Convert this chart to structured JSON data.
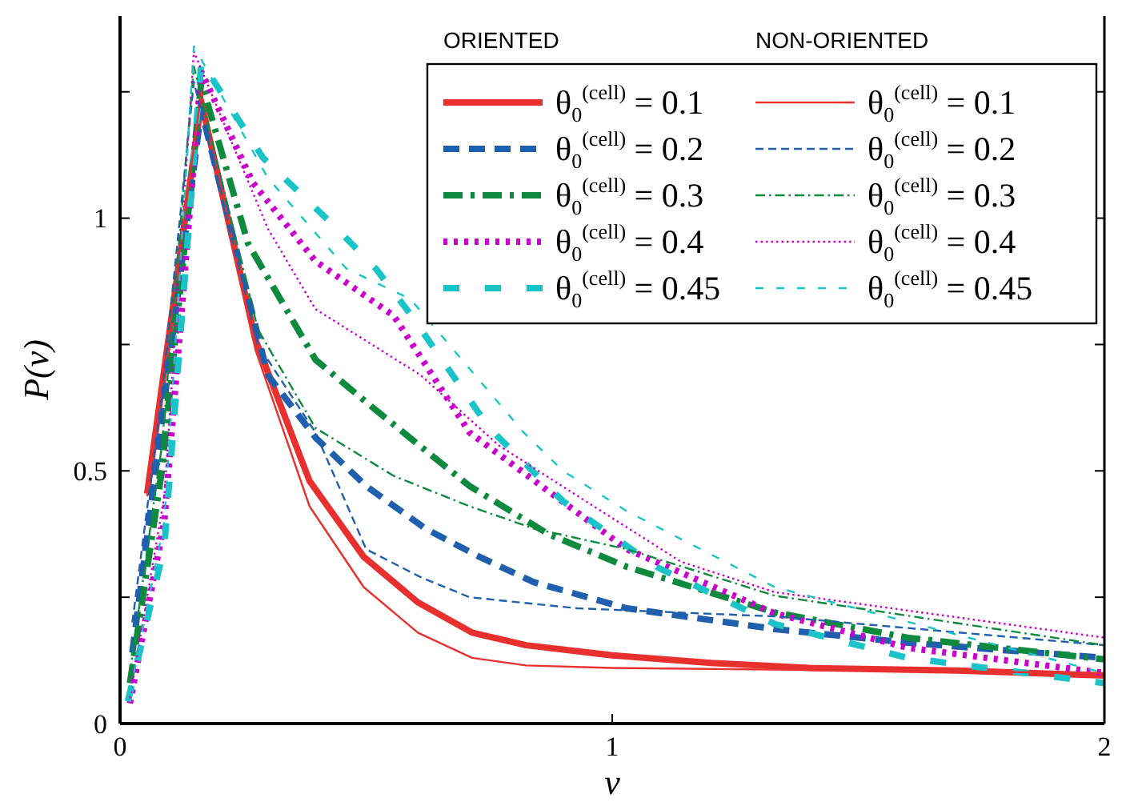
{
  "chart_data": {
    "type": "line",
    "xlabel": "v",
    "ylabel": "P(v)",
    "xlim": [
      0,
      2
    ],
    "ylim": [
      0,
      1.4
    ],
    "xticks": [
      0,
      1,
      2
    ],
    "yticks": [
      0,
      {
        "value": 0.25,
        "label": null
      },
      0.5,
      {
        "value": 0.75,
        "label": null
      },
      1,
      {
        "value": 1.25,
        "label": null
      }
    ],
    "grid": false,
    "legend": "top right",
    "annotations": [
      "ORIENTED",
      "NON-ORIENTED"
    ],
    "series": [
      {
        "name": "θ$_{0}$$^{(cell)}$ = 0.1",
        "color": "#e8312f",
        "line_style": "solid",
        "x": [
          0.055,
          0.165,
          0.275,
          0.385,
          0.495,
          0.605,
          0.715,
          0.825,
          1.0,
          1.2,
          1.4,
          1.7,
          2.0
        ],
        "values": [
          0.455,
          1.23,
          0.76,
          0.48,
          0.33,
          0.24,
          0.18,
          0.155,
          0.135,
          0.12,
          0.11,
          0.105,
          0.095
        ]
      },
      {
        "name": "θ$_{0}$$^{(cell)}$ = 0.2",
        "color": "#1f5fad",
        "line_style": "dashed",
        "x": [
          0.025,
          0.085,
          0.165,
          0.3,
          0.397,
          0.5,
          0.62,
          0.73,
          0.84,
          1.03,
          1.33,
          1.6,
          2.0
        ],
        "values": [
          0.14,
          0.6,
          1.215,
          0.69,
          0.566,
          0.47,
          0.386,
          0.33,
          0.28,
          0.228,
          0.187,
          0.16,
          0.13
        ]
      },
      {
        "name": "θ$_{0}$$^{(cell)}$ = 0.3",
        "color": "#0e8a3e",
        "line_style": "dashdot",
        "x": [
          0.02,
          0.085,
          0.165,
          0.26,
          0.397,
          0.52,
          0.71,
          0.87,
          1.03,
          1.33,
          1.6,
          2.0
        ],
        "values": [
          0.08,
          0.5,
          1.27,
          0.95,
          0.72,
          0.62,
          0.47,
          0.375,
          0.31,
          0.22,
          0.17,
          0.127
        ]
      },
      {
        "name": "θ$_{0}$$^{(cell)}$ = 0.4",
        "color": "#cc00cc",
        "line_style": "dotted",
        "x": [
          0.02,
          0.09,
          0.165,
          0.27,
          0.397,
          0.556,
          0.71,
          0.87,
          1.03,
          1.33,
          1.6,
          2.0
        ],
        "values": [
          0.04,
          0.4,
          1.29,
          1.07,
          0.915,
          0.807,
          0.576,
          0.46,
          0.345,
          0.218,
          0.15,
          0.1
        ]
      },
      {
        "name": "θ$_{0}$$^{(cell)}$ = 0.45",
        "color": "#19c3c8",
        "line_style": "dashed",
        "x": [
          0.016,
          0.09,
          0.165,
          0.29,
          0.44,
          0.52,
          0.59,
          0.75,
          0.9,
          1.09,
          1.33,
          1.6,
          2.0
        ],
        "values": [
          0.044,
          0.35,
          1.31,
          1.12,
          0.98,
          0.9,
          0.81,
          0.585,
          0.44,
          0.31,
          0.197,
          0.13,
          0.08
        ]
      },
      {
        "name": "θ$_{0}$$^{(cell)}$ = 0.1",
        "color": "#e8312f",
        "line_style": "solid",
        "x": [
          0.055,
          0.165,
          0.275,
          0.385,
          0.495,
          0.605,
          0.715,
          0.825,
          1.0,
          1.5,
          2.0
        ],
        "values": [
          0.45,
          1.25,
          0.74,
          0.43,
          0.27,
          0.18,
          0.13,
          0.115,
          0.11,
          0.105,
          0.1
        ]
      },
      {
        "name": "θ$_{0}$$^{(cell)}$ = 0.2",
        "color": "#1f5fad",
        "line_style": "dashed",
        "x": [
          0.025,
          0.085,
          0.15,
          0.28,
          0.397,
          0.5,
          0.61,
          0.71,
          0.93,
          1.33,
          2.0
        ],
        "values": [
          0.2,
          0.65,
          1.27,
          0.75,
          0.576,
          0.345,
          0.29,
          0.25,
          0.228,
          0.212,
          0.155
        ]
      },
      {
        "name": "θ$_{0}$$^{(cell)}$ = 0.3",
        "color": "#0e8a3e",
        "line_style": "dashdot",
        "x": [
          0.02,
          0.085,
          0.15,
          0.28,
          0.397,
          0.556,
          0.71,
          0.84,
          1.03,
          1.33,
          2.0
        ],
        "values": [
          0.1,
          0.55,
          1.3,
          0.78,
          0.585,
          0.49,
          0.43,
          0.386,
          0.345,
          0.253,
          0.155
        ]
      },
      {
        "name": "θ$_{0}$$^{(cell)}$ = 0.4",
        "color": "#cc00cc",
        "line_style": "dotted",
        "x": [
          0.02,
          0.09,
          0.15,
          0.3,
          0.397,
          0.61,
          0.77,
          0.93,
          1.14,
          1.33,
          2.0
        ],
        "values": [
          0.05,
          0.45,
          1.33,
          0.98,
          0.82,
          0.69,
          0.55,
          0.45,
          0.32,
          0.26,
          0.17
        ]
      },
      {
        "name": "θ$_{0}$$^{(cell)}$ = 0.45",
        "color": "#19c3c8",
        "line_style": "dashed",
        "x": [
          0.02,
          0.09,
          0.15,
          0.3,
          0.46,
          0.59,
          0.82,
          0.9,
          1.03,
          1.33,
          2.0
        ],
        "values": [
          0.06,
          0.4,
          1.34,
          1.08,
          0.9,
          0.84,
          0.576,
          0.5,
          0.42,
          0.27,
          0.1
        ]
      }
    ]
  }
}
